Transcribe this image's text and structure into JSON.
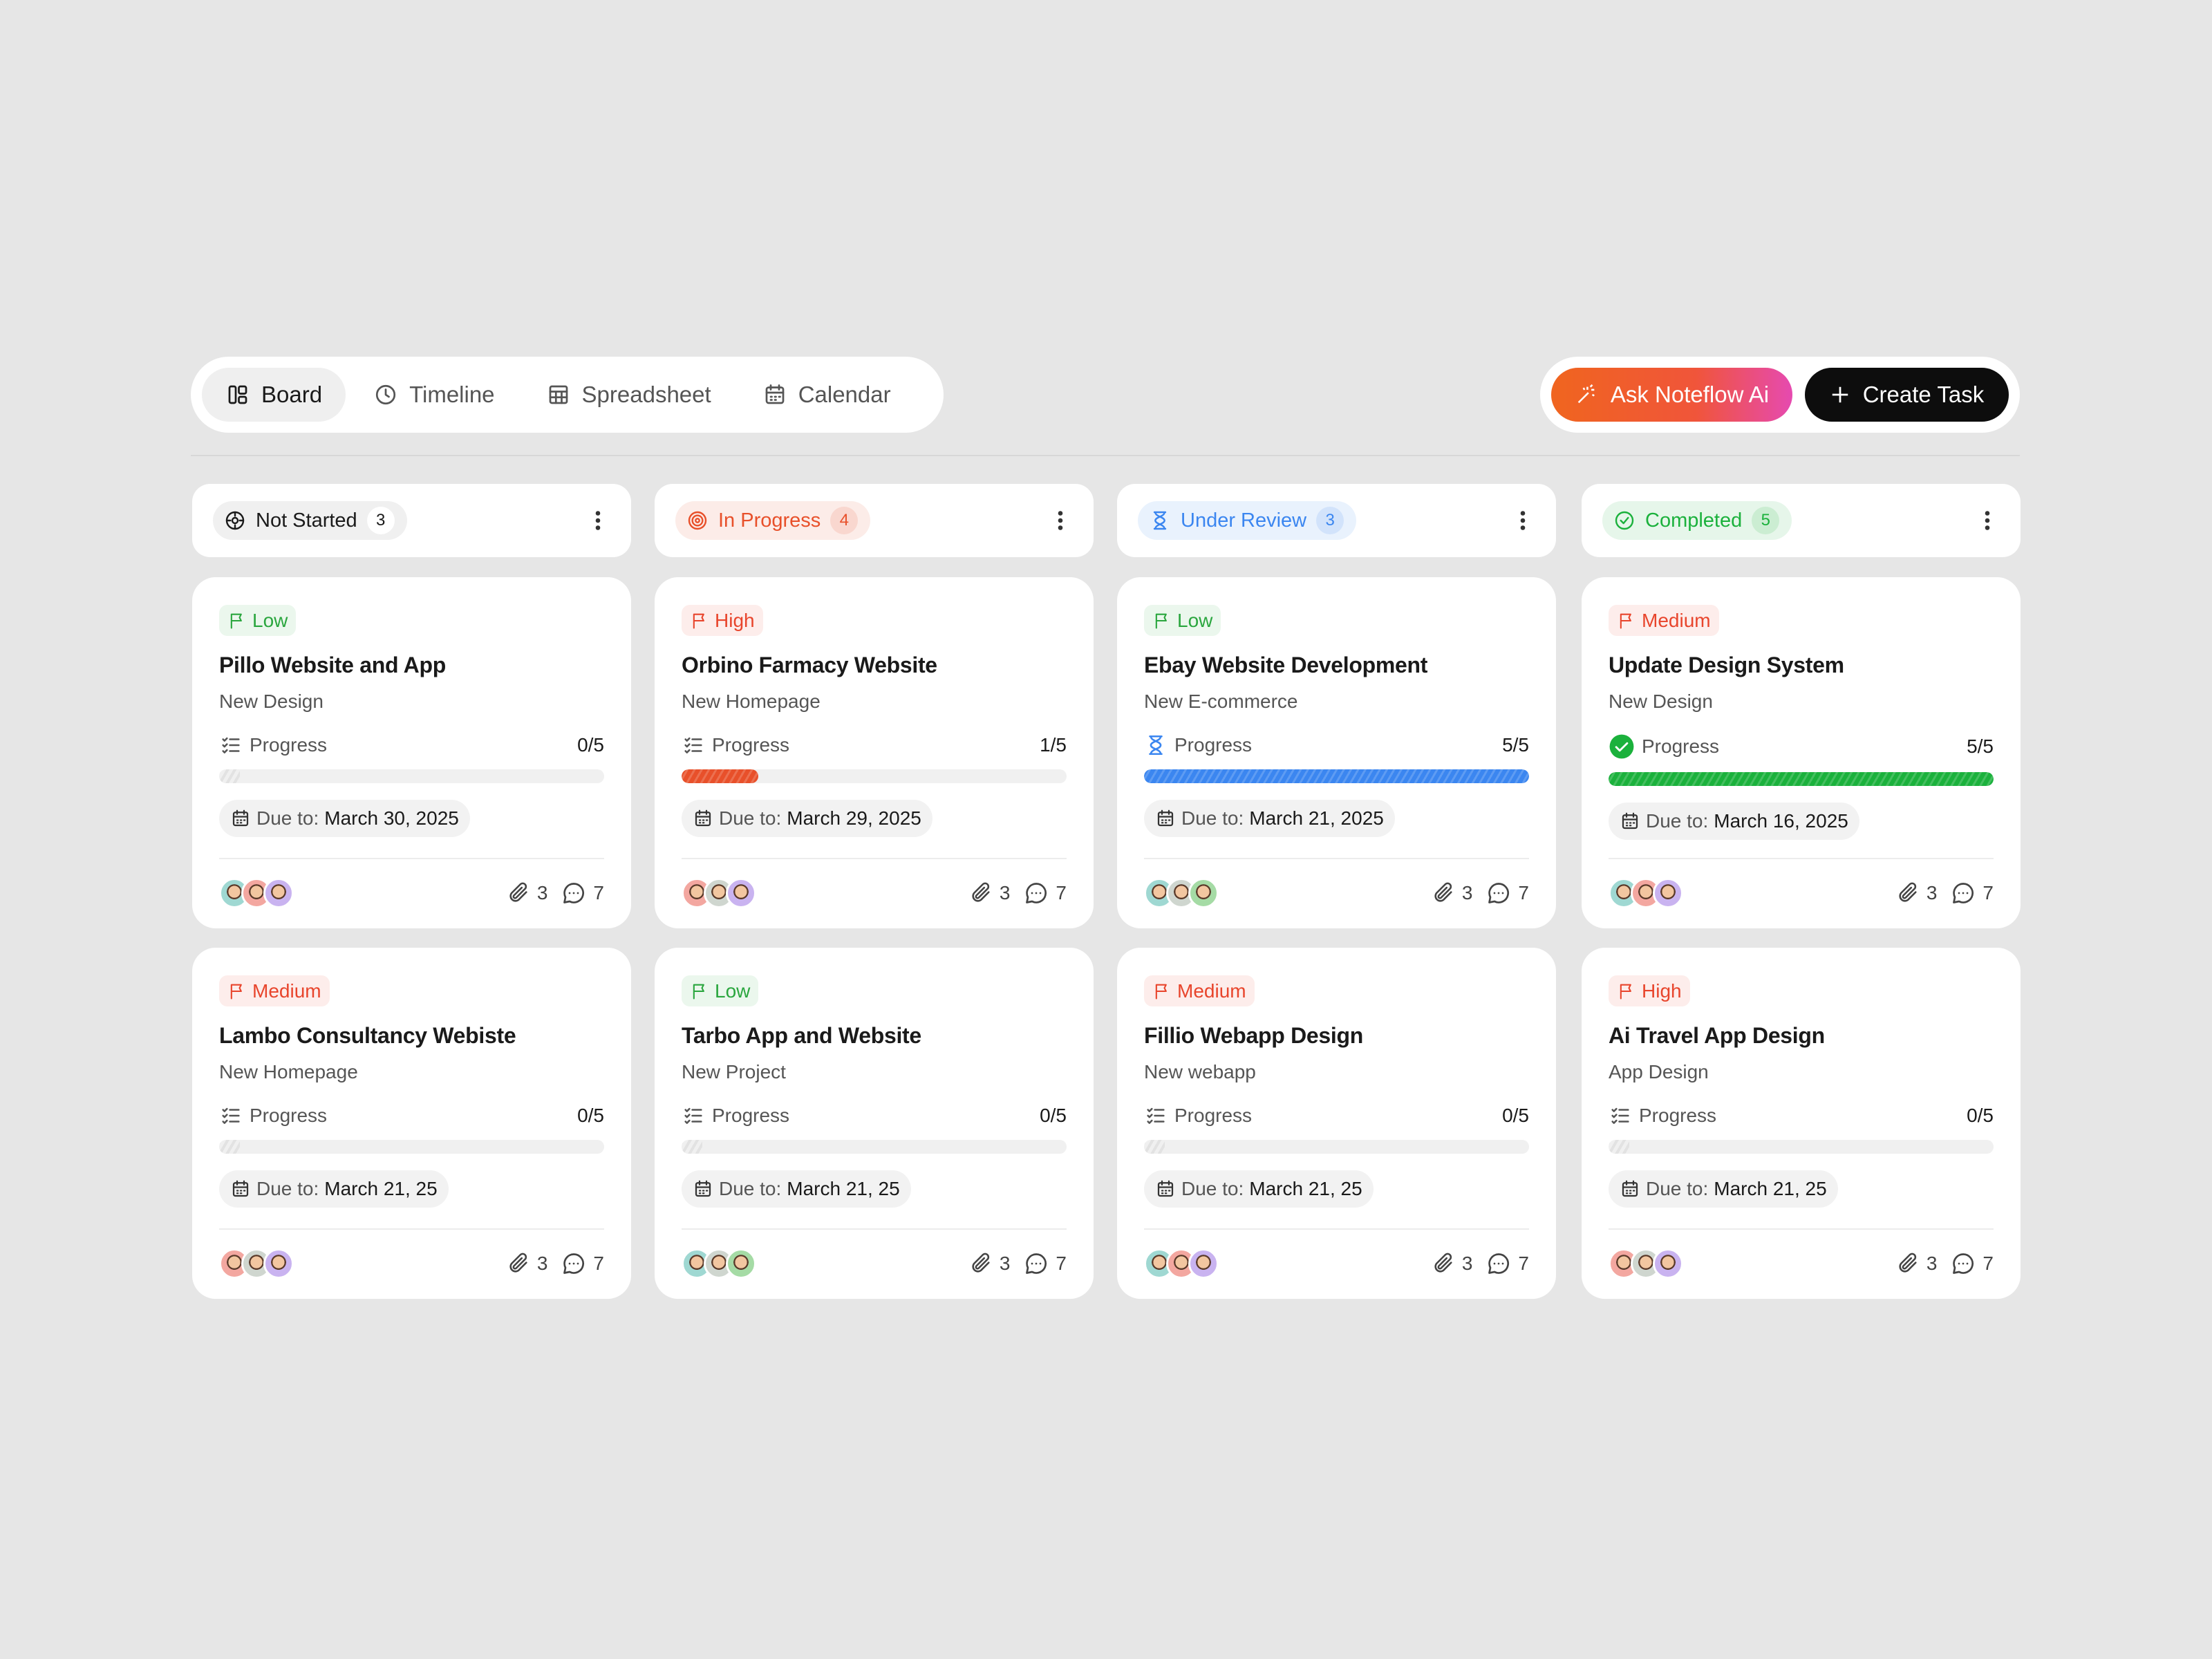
{
  "tabs": [
    "Board",
    "Timeline",
    "Spreadsheet",
    "Calendar"
  ],
  "actions": {
    "ai": "Ask Noteflow Ai",
    "create": "Create Task"
  },
  "columns": [
    {
      "status": "Not Started",
      "count": 3,
      "color": "#1a1a1a",
      "cards": [
        {
          "priority": {
            "label": "Low",
            "color": "#2aa63e"
          },
          "title": "Pillo Website and App",
          "subtitle": "New Design",
          "progress_label": "Progress",
          "progress": "0/5",
          "due_label": "Due to:",
          "due": "March 30, 2025",
          "attachments": 3,
          "comments": 7
        },
        {
          "priority": {
            "label": "Medium",
            "color": "#e8452c"
          },
          "title": "Lambo Consultancy Webiste",
          "subtitle": "New Homepage",
          "progress_label": "Progress",
          "progress": "0/5",
          "due_label": "Due to:",
          "due": "March 21, 25",
          "attachments": 3,
          "comments": 7
        }
      ]
    },
    {
      "status": "In Progress",
      "count": 4,
      "color": "#e8502a",
      "cards": [
        {
          "priority": {
            "label": "High",
            "color": "#e8452c"
          },
          "title": "Orbino Farmacy Website",
          "subtitle": "New Homepage",
          "progress_label": "Progress",
          "progress": "1/5",
          "due_label": "Due to:",
          "due": "March 29, 2025",
          "attachments": 3,
          "comments": 7
        },
        {
          "priority": {
            "label": "Low",
            "color": "#2aa63e"
          },
          "title": "Tarbo App and Website",
          "subtitle": "New Project",
          "progress_label": "Progress",
          "progress": "0/5",
          "due_label": "Due to:",
          "due": "March 21, 25",
          "attachments": 3,
          "comments": 7
        }
      ]
    },
    {
      "status": "Under Review",
      "count": 3,
      "color": "#3b86f0",
      "cards": [
        {
          "priority": {
            "label": "Low",
            "color": "#2aa63e"
          },
          "title": "Ebay Website Development",
          "subtitle": "New E-commerce",
          "progress_label": "Progress",
          "progress": "5/5",
          "due_label": "Due to:",
          "due": "March 21, 2025",
          "attachments": 3,
          "comments": 7
        },
        {
          "priority": {
            "label": "Medium",
            "color": "#e8452c"
          },
          "title": "Fillio Webapp Design",
          "subtitle": "New webapp",
          "progress_label": "Progress",
          "progress": "0/5",
          "due_label": "Due to:",
          "due": "March 21, 25",
          "attachments": 3,
          "comments": 7
        }
      ]
    },
    {
      "status": "Completed",
      "count": 5,
      "color": "#1bb13c",
      "cards": [
        {
          "priority": {
            "label": "Medium",
            "color": "#e8452c"
          },
          "title": "Update Design System",
          "subtitle": "New Design",
          "progress_label": "Progress",
          "progress": "5/5",
          "due_label": "Due to:",
          "due": "March 16, 2025",
          "attachments": 3,
          "comments": 7
        },
        {
          "priority": {
            "label": "High",
            "color": "#e8452c"
          },
          "title": "Ai Travel App Design",
          "subtitle": "App Design",
          "progress_label": "Progress",
          "progress": "0/5",
          "due_label": "Due to:",
          "due": "March 21, 25",
          "attachments": 3,
          "comments": 7
        }
      ]
    }
  ]
}
